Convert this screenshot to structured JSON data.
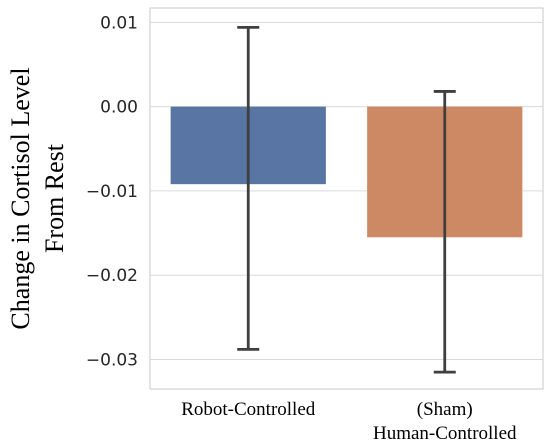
{
  "chart_data": {
    "type": "bar",
    "categories": [
      [
        "Robot-Controlled"
      ],
      [
        "(Sham)",
        "Human-Controlled"
      ]
    ],
    "values": [
      -0.0092,
      -0.0155
    ],
    "error_bars": [
      {
        "low": -0.0288,
        "high": 0.0094
      },
      {
        "low": -0.0315,
        "high": 0.0018
      }
    ],
    "bar_colors": [
      "#5875a4",
      "#cc8963"
    ],
    "error_bar_color": "#3f3f3f",
    "ylabel": [
      "Change in Cortisol Level",
      "From Rest"
    ],
    "xlabel": "",
    "yticks": [
      0.01,
      0.0,
      -0.01,
      -0.02,
      -0.03
    ],
    "ytick_labels": [
      "0.01",
      "0.00",
      "−0.01",
      "−0.02",
      "−0.03"
    ],
    "ylim": [
      -0.0335,
      0.0117
    ],
    "grid": true,
    "grid_color": "#dadada",
    "frame_color": "#c8c8c8"
  }
}
